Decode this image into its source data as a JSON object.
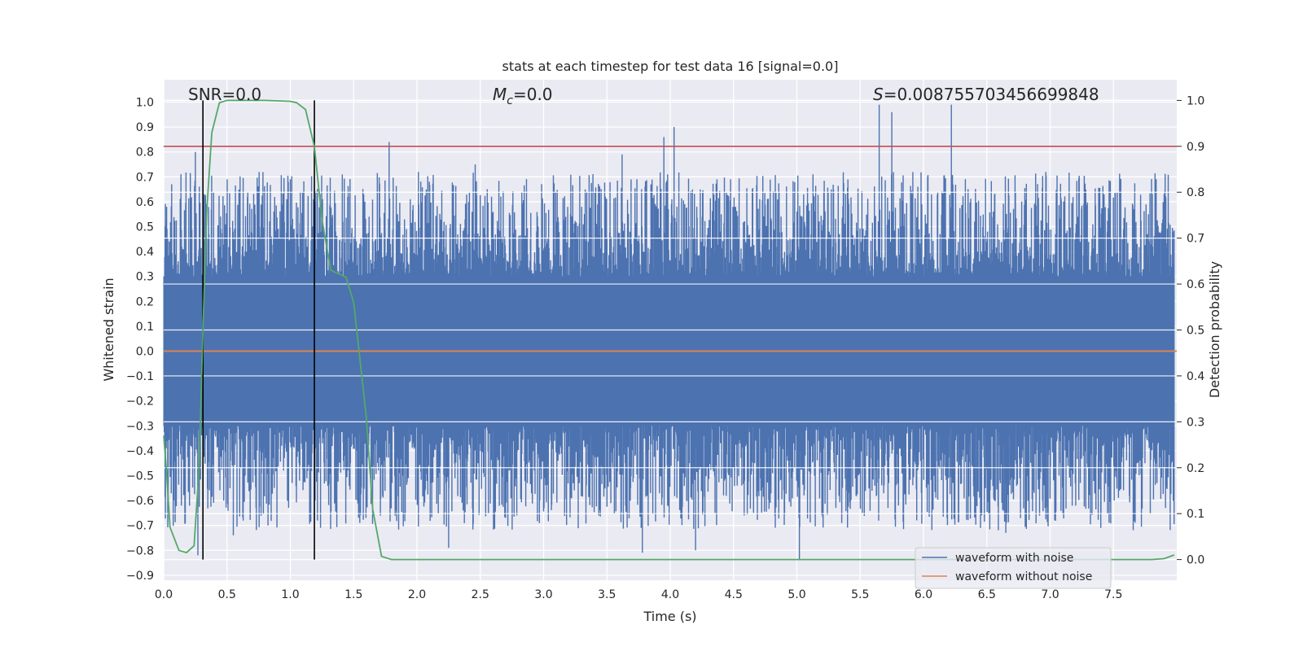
{
  "chart_data": {
    "type": "line",
    "title": "stats at each timestep for test data 16 [signal=0.0]",
    "xlabel": "Time (s)",
    "ylabel": "Whitened strain",
    "y2label": "Detection probability",
    "xlim": [
      0.0,
      8.0
    ],
    "ylim": [
      -0.92,
      1.09
    ],
    "y2lim": [
      -0.045,
      1.045
    ],
    "x_ticks": [
      "0.0",
      "0.5",
      "1.0",
      "1.5",
      "2.0",
      "2.5",
      "3.0",
      "3.5",
      "4.0",
      "4.5",
      "5.0",
      "5.5",
      "6.0",
      "6.5",
      "7.0",
      "7.5"
    ],
    "y_ticks": [
      "1.0",
      "0.9",
      "0.8",
      "0.7",
      "0.6",
      "0.5",
      "0.4",
      "0.3",
      "0.2",
      "0.1",
      "0.0",
      "−0.1",
      "−0.2",
      "−0.3",
      "−0.4",
      "−0.5",
      "−0.6",
      "−0.7",
      "−0.8",
      "−0.9"
    ],
    "y2_ticks": [
      "1.0",
      "0.9",
      "0.8",
      "0.7",
      "0.6",
      "0.5",
      "0.4",
      "0.3",
      "0.2",
      "0.1",
      "0.0"
    ],
    "grid": true,
    "annotations": {
      "snr": "SNR=0.0",
      "mc_symbol": "M",
      "mc_sub": "c",
      "mc_value": "=0.0",
      "s_symbol": "S",
      "s_value": "=0.008755703456699848"
    },
    "threshold": 0.9,
    "vertical_markers_s": [
      0.31,
      1.19
    ],
    "series": [
      {
        "name": "waveform with noise",
        "color": "#4c72b0",
        "description_of_envelope": true,
        "typical_upper": 0.3,
        "typical_lower": -0.3,
        "peaks": [
          {
            "x": 0.02,
            "y": 0.52
          },
          {
            "x": 0.25,
            "y": 0.8
          },
          {
            "x": 0.32,
            "y": 0.63
          },
          {
            "x": 1.0,
            "y": 0.69
          },
          {
            "x": 1.78,
            "y": 0.84
          },
          {
            "x": 2.46,
            "y": 0.75
          },
          {
            "x": 3.62,
            "y": 0.79
          },
          {
            "x": 3.95,
            "y": 0.86
          },
          {
            "x": 4.03,
            "y": 0.9
          },
          {
            "x": 5.65,
            "y": 0.99
          },
          {
            "x": 5.75,
            "y": 0.96
          },
          {
            "x": 6.22,
            "y": 0.99
          },
          {
            "x": 7.9,
            "y": 0.63
          },
          {
            "x": 0.08,
            "y": -0.6
          },
          {
            "x": 0.27,
            "y": -0.82
          },
          {
            "x": 0.55,
            "y": -0.74
          },
          {
            "x": 2.25,
            "y": -0.79
          },
          {
            "x": 3.78,
            "y": -0.81
          },
          {
            "x": 4.2,
            "y": -0.8
          },
          {
            "x": 5.02,
            "y": -0.84
          },
          {
            "x": 6.45,
            "y": -0.71
          },
          {
            "x": 6.65,
            "y": -0.73
          },
          {
            "x": 7.4,
            "y": -0.71
          }
        ]
      },
      {
        "name": "waveform without noise",
        "color": "#dd8452",
        "x": [
          0.0,
          8.0
        ],
        "y": [
          0.0,
          0.0
        ]
      },
      {
        "name": "detection probability",
        "color": "#55a868",
        "axis": "right",
        "x": [
          0.0,
          0.02,
          0.05,
          0.12,
          0.18,
          0.24,
          0.28,
          0.31,
          0.34,
          0.38,
          0.44,
          0.5,
          0.6,
          0.8,
          1.0,
          1.05,
          1.12,
          1.19,
          1.25,
          1.32,
          1.44,
          1.5,
          1.6,
          1.65,
          1.72,
          1.8,
          2.0,
          3.0,
          4.0,
          5.0,
          6.0,
          7.0,
          7.5,
          7.8,
          7.9,
          7.98
        ],
        "y": [
          0.27,
          0.2,
          0.07,
          0.02,
          0.015,
          0.03,
          0.2,
          0.5,
          0.76,
          0.93,
          0.995,
          1.0,
          1.0,
          1.0,
          0.998,
          0.995,
          0.98,
          0.9,
          0.74,
          0.63,
          0.615,
          0.56,
          0.31,
          0.11,
          0.007,
          0.0,
          0.0,
          0.0,
          0.0,
          0.0,
          0.0,
          0.0,
          0.0,
          0.0,
          0.002,
          0.01
        ]
      }
    ],
    "legend": {
      "placement": "lower-right",
      "entries": [
        {
          "label": "waveform with noise",
          "color": "#4c72b0"
        },
        {
          "label": "waveform without noise",
          "color": "#dd8452"
        }
      ]
    }
  }
}
